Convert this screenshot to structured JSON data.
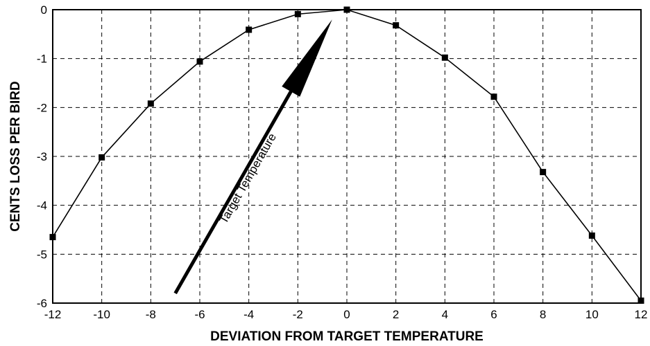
{
  "chart_data": {
    "type": "line",
    "xlabel": "DEVIATION FROM TARGET TEMPERATURE",
    "ylabel": "CENTS LOSS PER BIRD",
    "xlim": [
      -12,
      12
    ],
    "ylim": [
      -6,
      0
    ],
    "xticks": [
      "-12",
      "-10",
      "-8",
      "-6",
      "-4",
      "-2",
      "0",
      "2",
      "4",
      "6",
      "8",
      "10",
      "12"
    ],
    "yticks": [
      "0",
      "-1",
      "-2",
      "-3",
      "-4",
      "-5",
      "-6"
    ],
    "grid": true,
    "series": [
      {
        "x": [
          -12,
          -10,
          -8,
          -6,
          -4,
          -2,
          0,
          2,
          4,
          6,
          8,
          10,
          12
        ],
        "y": [
          -4.65,
          -3.02,
          -1.92,
          -1.06,
          -0.41,
          -0.09,
          0,
          -0.32,
          -0.98,
          -1.78,
          -3.32,
          -4.62,
          -5.95
        ]
      }
    ],
    "annotations": [
      {
        "text": "Target Temperature",
        "arrow_from": [
          -7,
          -5.8
        ],
        "arrow_to": [
          -0.6,
          -0.2
        ]
      }
    ]
  }
}
